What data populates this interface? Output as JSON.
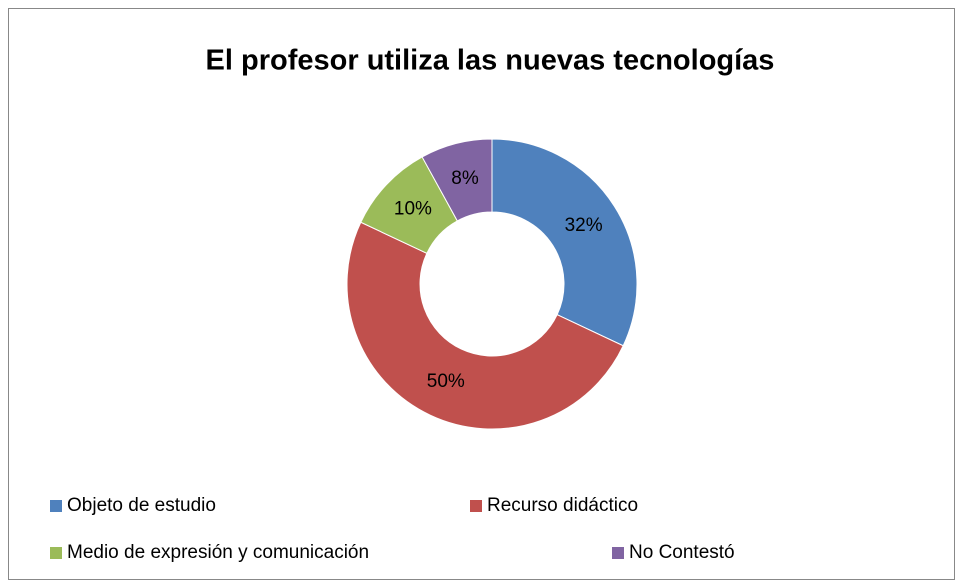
{
  "chart_data": {
    "type": "pie",
    "donut": true,
    "title": "El profesor utiliza las nuevas tecnologías",
    "categories": [
      "Objeto de estudio",
      "Recurso didáctico",
      "Medio de expresión y comunicación",
      "No Contestó"
    ],
    "values": [
      32,
      50,
      10,
      8
    ],
    "value_labels": [
      "32%",
      "50%",
      "10%",
      "8%"
    ],
    "colors": [
      "#4f81bd",
      "#c0504d",
      "#9bbb59",
      "#8064a2"
    ],
    "legend": "bottom"
  }
}
